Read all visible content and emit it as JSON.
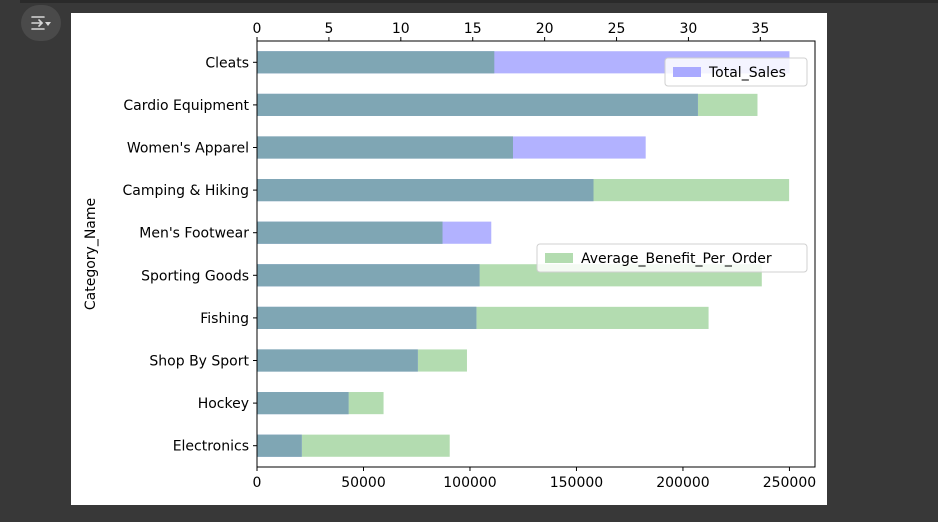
{
  "toolbar": {
    "icon": "output-settings-icon"
  },
  "chart_data": {
    "type": "bar",
    "orientation": "horizontal",
    "ylabel": "Category_Name",
    "categories": [
      "Cleats",
      "Cardio Equipment",
      "Women's Apparel",
      "Camping & Hiking",
      "Men's Footwear",
      "Sporting Goods",
      "Fishing",
      "Shop By Sport",
      "Hockey",
      "Electronics"
    ],
    "series": [
      {
        "name": "Total_Sales",
        "axis": "bottom",
        "color": "#aaaaff",
        "values": [
          250000,
          207000,
          182500,
          158000,
          110000,
          104500,
          103000,
          75500,
          43000,
          21000
        ]
      },
      {
        "name": "Average_Benefit_Per_Order",
        "axis": "top",
        "color": "#b3dcb0",
        "values": [
          16.5,
          34.8,
          17.8,
          37.0,
          12.9,
          35.1,
          31.4,
          14.6,
          8.8,
          13.4
        ]
      }
    ],
    "bottom_axis": {
      "lim": [
        0,
        262000
      ],
      "ticks": [
        0,
        50000,
        100000,
        150000,
        200000,
        250000
      ]
    },
    "top_axis": {
      "lim": [
        0,
        38.8
      ],
      "ticks": [
        0,
        5,
        10,
        15,
        20,
        25,
        30,
        35
      ]
    },
    "legends": [
      {
        "series": "Total_Sales",
        "placement": "upper right"
      },
      {
        "series": "Average_Benefit_Per_Order",
        "placement": "center right"
      }
    ]
  }
}
